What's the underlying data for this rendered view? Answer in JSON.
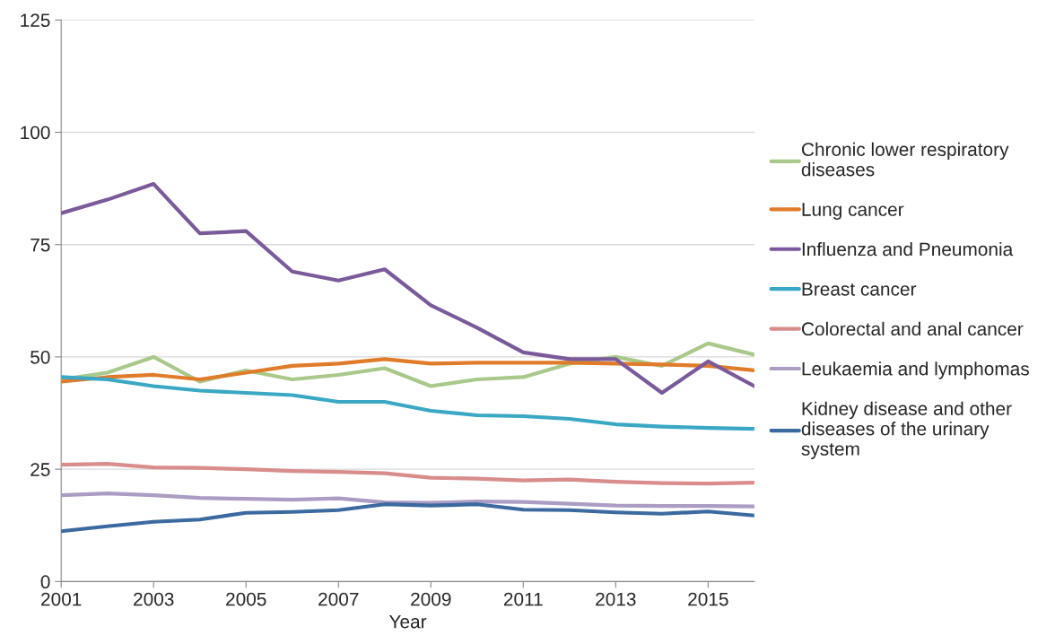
{
  "chart_data": {
    "type": "line",
    "xlabel": "Year",
    "x": [
      2001,
      2002,
      2003,
      2004,
      2005,
      2006,
      2007,
      2008,
      2009,
      2010,
      2011,
      2012,
      2013,
      2014,
      2015,
      2016
    ],
    "xlim": [
      2001,
      2016
    ],
    "xticks": [
      2001,
      2003,
      2005,
      2007,
      2009,
      2011,
      2013,
      2015
    ],
    "ylim": [
      0,
      125
    ],
    "yticks": [
      0,
      25,
      50,
      75,
      100,
      125
    ],
    "grid": "y",
    "legend": "right",
    "marker": "none",
    "line_style": "solid",
    "series": [
      {
        "name": "Chronic lower respiratory diseases",
        "color": "#a9c98a",
        "values": [
          45,
          46.5,
          50,
          44.5,
          47,
          45,
          46,
          47.5,
          43.5,
          45,
          45.5,
          48.5,
          50,
          48,
          53,
          50.5
        ]
      },
      {
        "name": "Lung cancer",
        "color": "#e07b2a",
        "values": [
          44.5,
          45.5,
          46,
          45,
          46.5,
          48,
          48.5,
          49.5,
          48.5,
          48.7,
          48.7,
          48.7,
          48.5,
          48.3,
          48,
          47
        ]
      },
      {
        "name": "Influenza and Pneumonia",
        "color": "#7a5a9a",
        "values": [
          82,
          85,
          88.5,
          77.5,
          78,
          69,
          67,
          69.5,
          61.5,
          56.5,
          51,
          49.5,
          49.5,
          42,
          49,
          43.5
        ]
      },
      {
        "name": "Breast cancer",
        "color": "#3aa8c4",
        "values": [
          45.5,
          45,
          43.5,
          42.5,
          42,
          41.5,
          40,
          40,
          38,
          37,
          36.8,
          36.2,
          35,
          34.5,
          34.2,
          34
        ]
      },
      {
        "name": "Colorectal and anal cancer",
        "color": "#d98c8c",
        "values": [
          26,
          26.2,
          25.4,
          25.3,
          25,
          24.6,
          24.4,
          24.1,
          23.1,
          22.9,
          22.5,
          22.7,
          22.2,
          21.9,
          21.8,
          22
        ]
      },
      {
        "name": "Leukaemia and lymphomas",
        "color": "#ab9cc4",
        "values": [
          19.2,
          19.6,
          19.2,
          18.6,
          18.4,
          18.2,
          18.5,
          17.6,
          17.5,
          17.8,
          17.7,
          17.3,
          16.9,
          16.8,
          16.8,
          16.7
        ]
      },
      {
        "name": "Kidney disease and other diseases of the urinary system",
        "color": "#3b6aa0",
        "values": [
          11.2,
          12.3,
          13.3,
          13.8,
          15.3,
          15.5,
          15.9,
          17.2,
          16.9,
          17.2,
          16,
          15.9,
          15.4,
          15.1,
          15.6,
          14.7
        ]
      }
    ]
  }
}
